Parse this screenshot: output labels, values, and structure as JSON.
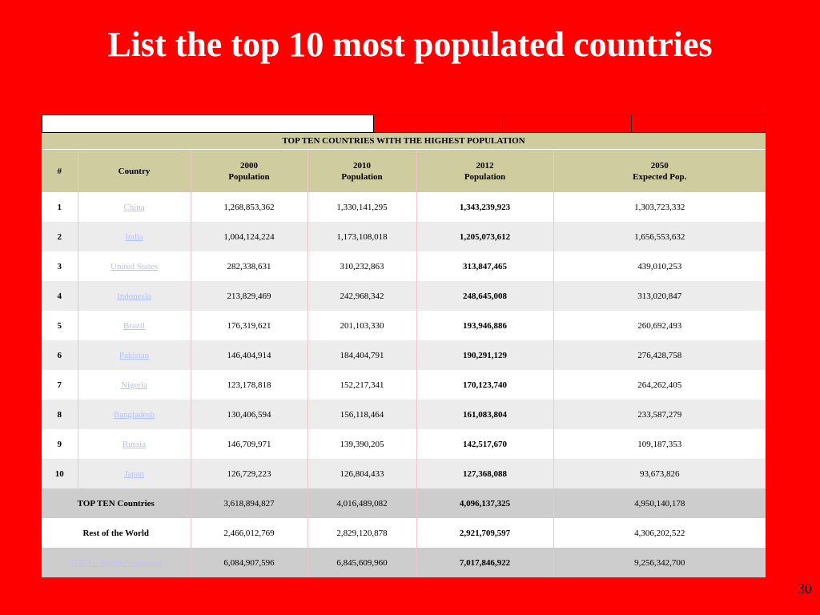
{
  "slide": {
    "title": "List the top 10 most populated countries",
    "page_number": "30"
  },
  "table": {
    "banner": "TOP TEN COUNTRIES WITH THE HIGHEST POPULATION",
    "headers": {
      "rank": "#",
      "country": "Country",
      "y2000_year": "2000",
      "y2000_label": "Population",
      "y2010_year": "2010",
      "y2010_label": "Population",
      "y2012_year": "2012",
      "y2012_label": "Population",
      "y2050_year": "2050",
      "y2050_label": "Expected Pop."
    },
    "rows": [
      {
        "rank": "1",
        "country": "China",
        "p2000": "1,268,853,362",
        "p2010": "1,330,141,295",
        "p2012": "1,343,239,923",
        "p2050": "1,303,723,332"
      },
      {
        "rank": "2",
        "country": "India",
        "p2000": "1,004,124,224",
        "p2010": "1,173,108,018",
        "p2012": "1,205,073,612",
        "p2050": "1,656,553,632"
      },
      {
        "rank": "3",
        "country": "United States",
        "p2000": "282,338,631",
        "p2010": "310,232,863",
        "p2012": "313,847,465",
        "p2050": "439,010,253"
      },
      {
        "rank": "4",
        "country": "Indonesia",
        "p2000": "213,829,469",
        "p2010": "242,968,342",
        "p2012": "248,645,008",
        "p2050": "313,020,847"
      },
      {
        "rank": "5",
        "country": "Brazil",
        "p2000": "176,319,621",
        "p2010": "201,103,330",
        "p2012": "193,946,886",
        "p2050": "260,692,493"
      },
      {
        "rank": "6",
        "country": "Pakistan",
        "p2000": "146,404,914",
        "p2010": "184,404,791",
        "p2012": "190,291,129",
        "p2050": "276,428,758"
      },
      {
        "rank": "7",
        "country": "Nigeria",
        "p2000": "123,178,818",
        "p2010": "152,217,341",
        "p2012": "170,123,740",
        "p2050": "264,262,405"
      },
      {
        "rank": "8",
        "country": "Bangladesh",
        "p2000": "130,406,594",
        "p2010": "156,118,464",
        "p2012": "161,083,804",
        "p2050": "233,587,279"
      },
      {
        "rank": "9",
        "country": "Russia",
        "p2000": "146,709,971",
        "p2010": "139,390,205",
        "p2012": "142,517,670",
        "p2050": "109,187,353"
      },
      {
        "rank": "10",
        "country": "Japan",
        "p2000": "126,729,223",
        "p2010": "126,804,433",
        "p2012": "127,368,088",
        "p2050": "93,673,826"
      }
    ],
    "summary": [
      {
        "label": "TOP TEN Countries",
        "p2000": "3,618,894,827",
        "p2010": "4,016,489,082",
        "p2012": "4,096,137,325",
        "p2050": "4,950,140,178"
      },
      {
        "label": "Rest of the World",
        "p2000": "2,466,012,769",
        "p2010": "2,829,120,878",
        "p2012": "2,921,709,597",
        "p2050": "4,306,202,522"
      },
      {
        "label": "TOTAL World Population",
        "p2000": "6,084,907,596",
        "p2010": "6,845,609,960",
        "p2012": "7,017,846,922",
        "p2050": "9,256,342,700"
      }
    ]
  }
}
